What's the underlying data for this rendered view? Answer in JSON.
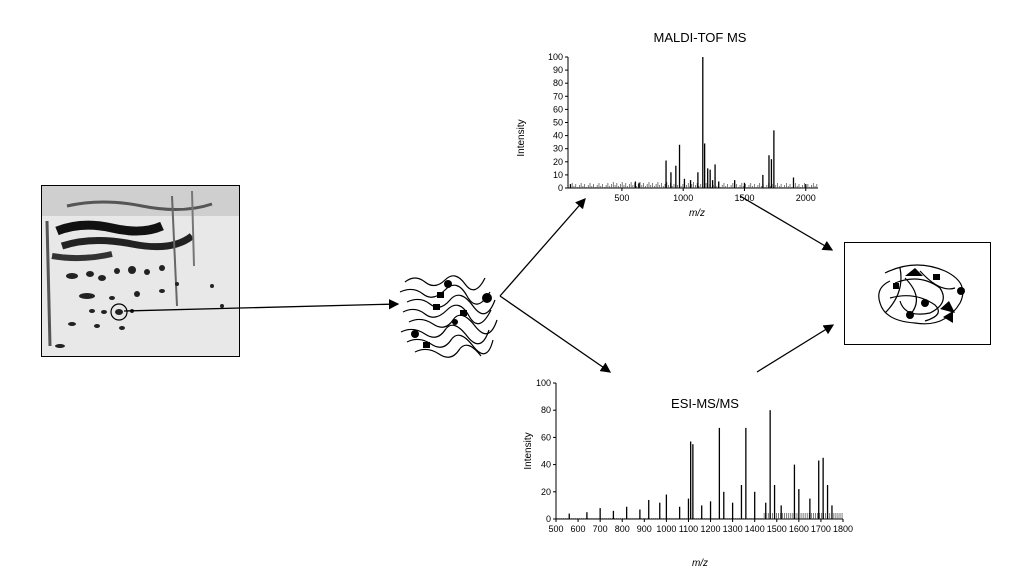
{
  "maldi": {
    "title": "MALDI-TOF MS",
    "ylabel": "Intensity",
    "xlabel": "m/z",
    "yticks": [
      "0",
      "10",
      "20",
      "30",
      "40",
      "50",
      "60",
      "70",
      "80",
      "90",
      "100"
    ],
    "xticks": [
      "500",
      "1000",
      "1500",
      "2000"
    ]
  },
  "esi": {
    "title": "ESI-MS/MS",
    "ylabel": "Intensity",
    "xlabel": "m/z",
    "yticks": [
      "0",
      "20",
      "40",
      "60",
      "80",
      "100"
    ],
    "xticks": [
      "500",
      "600",
      "700",
      "800",
      "900",
      "1000",
      "1100",
      "1200",
      "1300",
      "1400",
      "1500",
      "1600",
      "1700",
      "1800"
    ]
  },
  "chart_data": [
    {
      "type": "bar",
      "title": "MALDI-TOF MS",
      "xlabel": "m/z",
      "ylabel": "Intensity",
      "xlim": [
        60,
        2100
      ],
      "ylim": [
        0,
        100
      ],
      "x": [
        80,
        610,
        640,
        860,
        900,
        940,
        970,
        1010,
        1060,
        1120,
        1160,
        1175,
        1200,
        1220,
        1240,
        1260,
        1290,
        1420,
        1500,
        1650,
        1700,
        1720,
        1740,
        1900,
        2000
      ],
      "values": [
        3,
        5,
        4,
        21,
        12,
        17,
        33,
        7,
        6,
        12,
        100,
        34,
        15,
        14,
        6,
        18,
        5,
        6,
        4,
        10,
        25,
        22,
        44,
        8,
        3
      ]
    },
    {
      "type": "bar",
      "title": "ESI-MS/MS",
      "xlabel": "m/z",
      "ylabel": "Intensity",
      "xlim": [
        500,
        1800
      ],
      "ylim": [
        0,
        100
      ],
      "x": [
        560,
        640,
        700,
        760,
        820,
        880,
        920,
        970,
        1000,
        1060,
        1100,
        1110,
        1120,
        1160,
        1200,
        1240,
        1260,
        1300,
        1340,
        1360,
        1400,
        1450,
        1470,
        1490,
        1520,
        1580,
        1600,
        1650,
        1690,
        1710,
        1730,
        1750
      ],
      "values": [
        4,
        5,
        8,
        6,
        9,
        7,
        14,
        12,
        18,
        9,
        15,
        57,
        55,
        10,
        13,
        67,
        20,
        12,
        25,
        67,
        20,
        12,
        80,
        25,
        10,
        40,
        22,
        15,
        43,
        45,
        25,
        10
      ]
    }
  ]
}
